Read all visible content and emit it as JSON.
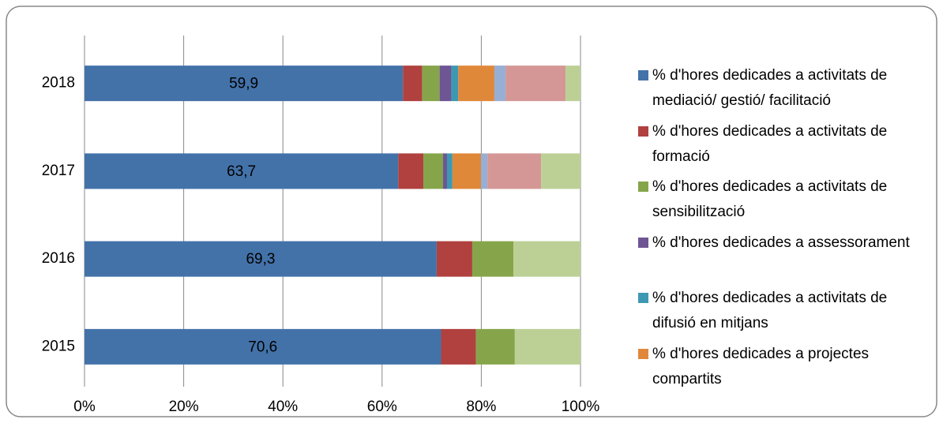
{
  "chart_data": {
    "type": "bar",
    "orientation": "horizontal",
    "stacking": "percent",
    "categories": [
      "2018",
      "2017",
      "2016",
      "2015"
    ],
    "series": [
      {
        "name": "% d'hores dedicades a activitats de mediació/ gestió/ facilitació",
        "color": "#4372a9",
        "values": [
          59.9,
          63.7,
          69.3,
          70.6
        ],
        "value_labels": [
          "59,9",
          "63,7",
          "69,3",
          "70,6"
        ]
      },
      {
        "name": "% d'hores dedicades a activitats de formació",
        "color": "#b0413f",
        "values": [
          3.6,
          5.1,
          7.0,
          6.9
        ]
      },
      {
        "name": "% d'hores dedicades a activitats de sensibilització",
        "color": "#86a54a",
        "values": [
          3.3,
          4.0,
          8.1,
          7.7
        ]
      },
      {
        "name": "% d'hores dedicades a assessorament",
        "color": "#6e5593",
        "values": [
          2.2,
          0.8,
          0,
          0
        ]
      },
      {
        "name": "% d'hores dedicades a activitats de difusió en mitjans",
        "color": "#3d99b2",
        "values": [
          1.3,
          1.1,
          0,
          0
        ]
      },
      {
        "name": "% d'hores dedicades a projectes compartits",
        "color": "#e0883a",
        "values": [
          6.8,
          5.8,
          0,
          0
        ]
      },
      {
        "color": "#97afd5",
        "values": [
          2.1,
          1.3,
          0,
          0
        ]
      },
      {
        "color": "#d49795",
        "values": [
          11.3,
          10.9,
          0,
          0
        ]
      },
      {
        "color": "#bcd096",
        "values": [
          2.8,
          8.0,
          13.2,
          13.0
        ]
      }
    ],
    "xlim": [
      0,
      100
    ],
    "xticks": [
      {
        "value": 0,
        "label": "0%"
      },
      {
        "value": 20,
        "label": "20%"
      },
      {
        "value": 40,
        "label": "40%"
      },
      {
        "value": 60,
        "label": "60%"
      },
      {
        "value": 80,
        "label": "80%"
      },
      {
        "value": 100,
        "label": "100%"
      }
    ],
    "grid": true
  }
}
